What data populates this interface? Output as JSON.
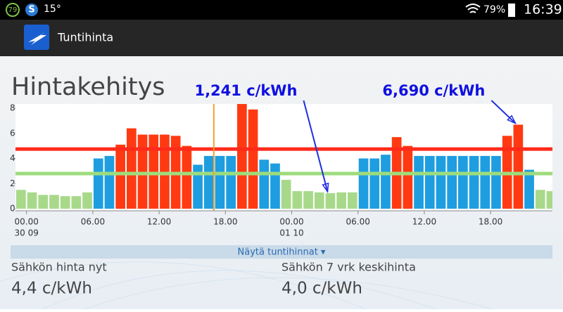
{
  "status_bar": {
    "badge": "79",
    "temperature": "15°",
    "battery": "79%",
    "time": "16:39"
  },
  "app_bar": {
    "title": "Tuntihinta"
  },
  "heading": "Hintakehitys",
  "chart_data": {
    "type": "bar",
    "categories": [
      null,
      "00.00",
      null,
      null,
      null,
      null,
      null,
      "06.00",
      null,
      null,
      null,
      null,
      null,
      "12.00",
      null,
      null,
      null,
      null,
      null,
      "18.00",
      null,
      null,
      null,
      null,
      null,
      "00.00",
      null,
      null,
      null,
      null,
      null,
      "06.00",
      null,
      null,
      null,
      null,
      null,
      "12.00",
      null,
      null,
      null,
      null,
      null,
      "18.00",
      null,
      null,
      null,
      null,
      null
    ],
    "x_sublabels": [
      null,
      "30 09",
      null,
      null,
      null,
      null,
      null,
      null,
      null,
      null,
      null,
      null,
      null,
      null,
      null,
      null,
      null,
      null,
      null,
      null,
      null,
      null,
      null,
      null,
      null,
      "01 10",
      null,
      null,
      null,
      null,
      null,
      null,
      null,
      null,
      null,
      null,
      null,
      null,
      null,
      null,
      null,
      null,
      null,
      null,
      null,
      null,
      null,
      null,
      null
    ],
    "values": [
      1.5,
      1.3,
      1.1,
      1.1,
      1.0,
      1.0,
      1.3,
      4.0,
      4.2,
      5.1,
      6.4,
      5.9,
      5.9,
      5.9,
      5.8,
      5.0,
      3.5,
      4.2,
      4.2,
      4.2,
      8.4,
      7.9,
      3.9,
      3.6,
      2.3,
      1.4,
      1.4,
      1.3,
      1.241,
      1.3,
      1.3,
      4.0,
      4.0,
      4.3,
      5.7,
      5.0,
      4.2,
      4.2,
      4.2,
      4.2,
      4.2,
      4.2,
      4.2,
      4.2,
      5.8,
      6.69,
      3.1,
      1.5,
      1.4
    ],
    "value_labels": [
      null,
      null,
      null,
      null,
      null,
      null,
      null,
      null,
      null,
      null,
      null,
      null,
      null,
      null,
      null,
      null,
      null,
      null,
      null,
      null,
      null,
      null,
      null,
      null,
      null,
      null,
      null,
      null,
      "1,241 c/kWh",
      null,
      null,
      null,
      null,
      null,
      null,
      null,
      null,
      null,
      null,
      null,
      null,
      null,
      null,
      null,
      null,
      "6,690 c/kWh",
      null,
      null,
      null
    ],
    "ylim": [
      0,
      8
    ],
    "yticks": [
      0,
      2,
      4,
      6,
      8
    ],
    "reference_lines": [
      {
        "value": 4.75,
        "color": "#ff2a1a"
      },
      {
        "value": 2.8,
        "color": "#9edc7c"
      }
    ],
    "colors": {
      "high": "#ff3a12",
      "mid": "#1e9ee0",
      "low": "#a8d98a"
    },
    "now": 17.95
  },
  "toggle": "Näytä tuntihinnat ▾",
  "stats": [
    {
      "label": "Sähkön hinta nyt",
      "value": "4,4 c/kWh"
    },
    {
      "label": "Sähkön 7 vrk keskihinta",
      "value": "4,0 c/kWh"
    }
  ]
}
